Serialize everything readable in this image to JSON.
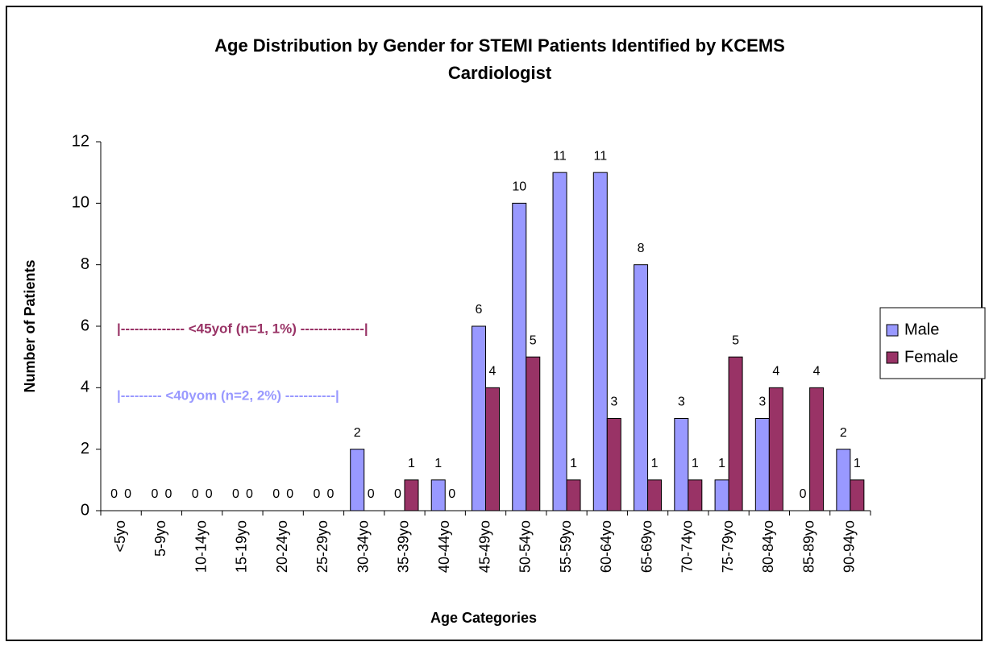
{
  "chart_data": {
    "type": "bar",
    "title": [
      "Age Distribution by Gender for STEMI Patients Identified by KCEMS",
      "Cardiologist"
    ],
    "x_label": "Age Categories",
    "y_label": "Number of Patients",
    "categories": [
      "<5yo",
      "5-9yo",
      "10-14yo",
      "15-19yo",
      "20-24yo",
      "25-29yo",
      "30-34yo",
      "35-39yo",
      "40-44yo",
      "45-49yo",
      "50-54yo",
      "55-59yo",
      "60-64yo",
      "65-69yo",
      "70-74yo",
      "75-79yo",
      "80-84yo",
      "85-89yo",
      "90-94yo"
    ],
    "series": [
      {
        "name": "Male",
        "color": "#9999ff",
        "values": [
          0,
          0,
          0,
          0,
          0,
          0,
          2,
          0,
          1,
          6,
          10,
          11,
          11,
          8,
          3,
          1,
          3,
          0,
          2
        ]
      },
      {
        "name": "Female",
        "color": "#993366",
        "values": [
          0,
          0,
          0,
          0,
          0,
          0,
          0,
          1,
          0,
          4,
          5,
          1,
          3,
          1,
          1,
          5,
          4,
          4,
          1
        ]
      }
    ],
    "ylim": [
      0,
      12
    ],
    "yticks": [
      0,
      2,
      4,
      6,
      8,
      10,
      12
    ],
    "grid": false,
    "legend": "right",
    "annotations": [
      {
        "text": "|-------------- <45yof (n=1, 1%) --------------|",
        "color": "#993366"
      },
      {
        "text": "|--------- <40yom (n=2, 2%) -----------|",
        "color": "#9999ff"
      }
    ]
  }
}
